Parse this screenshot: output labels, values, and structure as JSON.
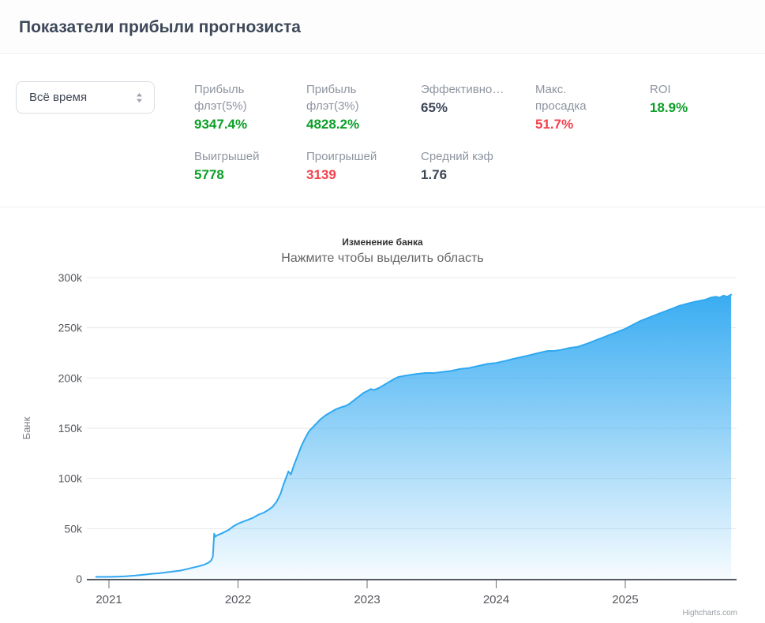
{
  "header": {
    "title": "Показатели прибыли прогнозиста"
  },
  "filter": {
    "value": "Всё время",
    "icon": "sort-updown-icon"
  },
  "stats": {
    "row1": [
      {
        "label": "Прибыль флэт(5%)",
        "value": "9347.4%",
        "tone": "positive"
      },
      {
        "label": "Прибыль флэт(3%)",
        "value": "4828.2%",
        "tone": "positive"
      },
      {
        "label": "Эффективно…",
        "value": "65%",
        "tone": "neutral"
      },
      {
        "label": "Макс. просадка",
        "value": "51.7%",
        "tone": "negative"
      },
      {
        "label": "ROI",
        "value": "18.9%",
        "tone": "positive"
      }
    ],
    "row2": [
      {
        "label": "Выигрышей",
        "value": "5778",
        "tone": "positive"
      },
      {
        "label": "Проигрышей",
        "value": "3139",
        "tone": "negative"
      },
      {
        "label": "Средний кэф",
        "value": "1.76",
        "tone": "neutral"
      }
    ]
  },
  "colors": {
    "positive": "#0b9f27",
    "negative": "#f2414d",
    "neutral": "#3c4555",
    "line": "#2fa8f1",
    "grid": "#e7e7e7",
    "axis": "#545a61",
    "tick_text": "#55585e"
  },
  "chart_data": {
    "type": "area",
    "title": "Изменение банка",
    "subtitle": "Нажмите чтобы выделить область",
    "ylabel": "Банк",
    "credits": "Highcharts.com",
    "y_unit": "k (×1000)",
    "ylim": [
      0,
      300
    ],
    "xlim": [
      2020.83,
      2025.86
    ],
    "ytick_values": [
      0,
      50,
      100,
      150,
      200,
      250,
      300
    ],
    "ytick_labels": [
      "0",
      "50k",
      "100k",
      "150k",
      "200k",
      "250k",
      "300k"
    ],
    "xtick_values": [
      2021,
      2022,
      2023,
      2024,
      2025
    ],
    "xtick_labels": [
      "2021",
      "2022",
      "2023",
      "2024",
      "2025"
    ],
    "legend": "off",
    "grid": "horizontal",
    "series": [
      {
        "name": "Банк",
        "x": [
          2020.9,
          2020.98,
          2021.06,
          2021.13,
          2021.2,
          2021.27,
          2021.33,
          2021.39,
          2021.45,
          2021.5,
          2021.55,
          2021.6,
          2021.64,
          2021.68,
          2021.71,
          2021.74,
          2021.77,
          2021.79,
          2021.805,
          2021.815,
          2021.825,
          2021.84,
          2021.87,
          2021.9,
          2021.93,
          2021.96,
          2022.0,
          2022.04,
          2022.08,
          2022.12,
          2022.16,
          2022.2,
          2022.24,
          2022.27,
          2022.3,
          2022.33,
          2022.35,
          2022.37,
          2022.39,
          2022.41,
          2022.43,
          2022.46,
          2022.49,
          2022.52,
          2022.55,
          2022.58,
          2022.61,
          2022.64,
          2022.68,
          2022.72,
          2022.76,
          2022.8,
          2022.83,
          2022.86,
          2022.9,
          2022.94,
          2022.97,
          2023.0,
          2023.03,
          2023.05,
          2023.09,
          2023.13,
          2023.17,
          2023.21,
          2023.24,
          2023.28,
          2023.33,
          2023.38,
          2023.45,
          2023.52,
          2023.58,
          2023.65,
          2023.72,
          2023.79,
          2023.86,
          2023.93,
          2024.0,
          2024.07,
          2024.13,
          2024.2,
          2024.27,
          2024.33,
          2024.4,
          2024.45,
          2024.5,
          2024.57,
          2024.63,
          2024.7,
          2024.76,
          2024.82,
          2024.88,
          2024.94,
          2025.0,
          2025.06,
          2025.12,
          2025.18,
          2025.24,
          2025.3,
          2025.36,
          2025.42,
          2025.48,
          2025.54,
          2025.58,
          2025.62,
          2025.66,
          2025.7,
          2025.73,
          2025.76,
          2025.79,
          2025.82
        ],
        "y": [
          2,
          2,
          2.2,
          2.6,
          3.2,
          4.2,
          5,
          5.6,
          6.6,
          7.4,
          8.2,
          9.6,
          10.8,
          12,
          13,
          14.2,
          16,
          18,
          22,
          45,
          42,
          43.5,
          45,
          47,
          49,
          52,
          55,
          57,
          59,
          61,
          64,
          66,
          69,
          72,
          77,
          85,
          93,
          100,
          107,
          104,
          112,
          122,
          132,
          140,
          147,
          151,
          155,
          159,
          163,
          166,
          169,
          171,
          172,
          174,
          178,
          182,
          185,
          187,
          189,
          188,
          190,
          193,
          196,
          199,
          201,
          202,
          203,
          204,
          205,
          205,
          206,
          207,
          209,
          210,
          212,
          214,
          215,
          217,
          219,
          221,
          223,
          225,
          227,
          227,
          228,
          230,
          231,
          234,
          237,
          240,
          243,
          246,
          249,
          253,
          257,
          260,
          263,
          266,
          269,
          272,
          274,
          276,
          277,
          278,
          280,
          281,
          280,
          282,
          281,
          283
        ]
      }
    ]
  }
}
